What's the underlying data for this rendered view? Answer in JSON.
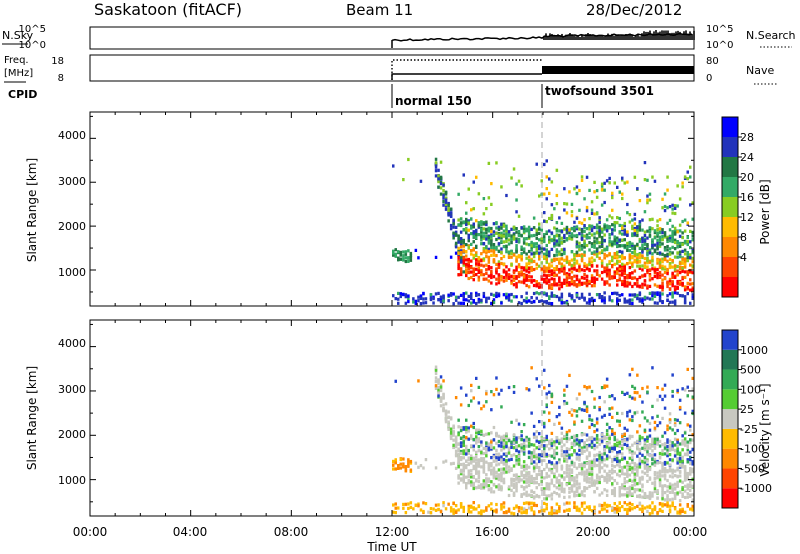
{
  "header": {
    "station": "Saskatoon (fitACF)",
    "beam": "Beam 11",
    "date": "28/Dec/2012"
  },
  "strips": {
    "nsky_label": "N.Sky",
    "nsky_ticks": [
      "10^5",
      "10^0"
    ],
    "nsearch_label": "N.Search",
    "nsearch_ticks": [
      "10^5",
      "10^0"
    ],
    "freq_label": "Freq.",
    "freq_unit": "[MHz]",
    "freq_ticks": [
      "18",
      "8"
    ],
    "nave_label": "Nave",
    "nave_ticks": [
      "80",
      "0"
    ],
    "cpid_label": "CPID",
    "cpid_modes": [
      "normal 150",
      "twofsound 3501"
    ]
  },
  "chart_data": [
    {
      "type": "heatmap",
      "panel": "power",
      "ylabel": "Slant Range [km]",
      "ylim": [
        180,
        4600
      ],
      "yticks": [
        "4000",
        "3000",
        "2000",
        "1000"
      ],
      "xticks": [
        "00:00",
        "04:00",
        "08:00",
        "12:00",
        "16:00",
        "20:00",
        "00:00"
      ],
      "xlabel": "Time UT",
      "colorbar_label": "Power [dB]",
      "colorbar_ticks": [
        "28",
        "24",
        "20",
        "16",
        "12",
        "8",
        "4"
      ],
      "colors": [
        "#0000ff",
        "#2233bb",
        "#227744",
        "#33aa66",
        "#88cc22",
        "#ffbb00",
        "#ff8800",
        "#ff4400",
        "#ff0000"
      ]
    },
    {
      "type": "heatmap",
      "panel": "velocity",
      "ylabel": "Slant Range [km]",
      "ylim": [
        180,
        4600
      ],
      "yticks": [
        "4000",
        "3000",
        "2000",
        "1000"
      ],
      "xticks": [
        "00:00",
        "04:00",
        "08:00",
        "12:00",
        "16:00",
        "20:00",
        "00:00"
      ],
      "xlabel": "Time UT",
      "colorbar_label": "Velocity [m s⁻¹]",
      "colorbar_ticks": [
        "1000",
        "500",
        "100",
        "25",
        "-25",
        "-100",
        "-500",
        "-1000"
      ],
      "colors": [
        "#2244cc",
        "#227755",
        "#33aa55",
        "#55cc33",
        "#c8c8c0",
        "#ffbb00",
        "#ff8800",
        "#ff4400",
        "#ff0000"
      ]
    }
  ]
}
